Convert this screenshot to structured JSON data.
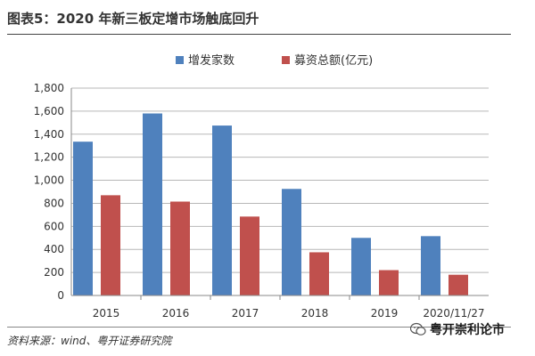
{
  "title": "图表5：2020 年新三板定增市场触底回升",
  "source": "资料来源：wind、粤开证券研究院",
  "watermark": "粤开崇利论市",
  "colors": {
    "series1": "#4f81bd",
    "series2": "#c0504d",
    "grid": "#b7b7b7",
    "axis": "#888888"
  },
  "chart_data": {
    "type": "bar",
    "title": "",
    "xlabel": "",
    "ylabel": "",
    "categories": [
      "2015",
      "2016",
      "2017",
      "2018",
      "2019",
      "2020/11/27"
    ],
    "series": [
      {
        "name": "增发家数",
        "values": [
          1335,
          1580,
          1475,
          925,
          500,
          515
        ]
      },
      {
        "name": "募资总额(亿元)",
        "values": [
          870,
          815,
          685,
          375,
          220,
          180
        ]
      }
    ],
    "ylim": [
      0,
      1800
    ],
    "yticks": [
      0,
      200,
      400,
      600,
      800,
      1000,
      1200,
      1400,
      1600,
      1800
    ],
    "ytick_labels": [
      "0",
      "200",
      "400",
      "600",
      "800",
      "1,000",
      "1,200",
      "1,400",
      "1,600",
      "1,800"
    ],
    "grid": true,
    "legend_position": "top-center"
  }
}
